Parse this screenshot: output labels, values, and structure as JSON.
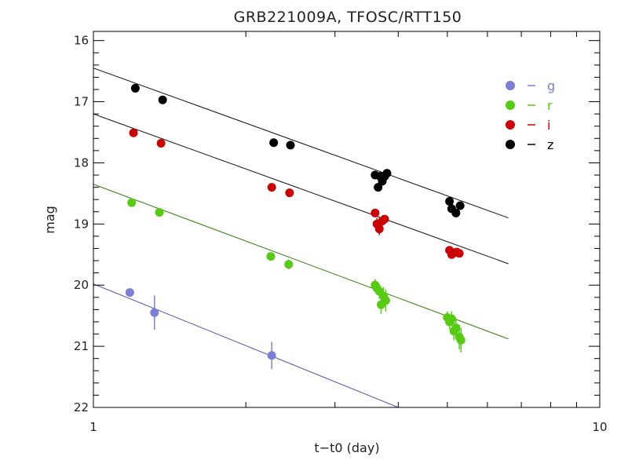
{
  "chart_data": {
    "type": "scatter",
    "title": "GRB221009A, TFOSC/RTT150",
    "xlabel": "t−t0 (day)",
    "ylabel": "mag",
    "x_scale": "log",
    "xlim": [
      1,
      10
    ],
    "ylim": [
      22,
      15.85
    ],
    "y_inverted": true,
    "x_tick_labels": [
      "1",
      "10"
    ],
    "y_tick_labels": [
      "16",
      "17",
      "18",
      "19",
      "20",
      "21",
      "22"
    ],
    "legend_position": "top-right",
    "series": [
      {
        "name": "g",
        "color": "#7b7fd6",
        "fit_color": "#4f53b0",
        "fit_line": {
          "x0": 1,
          "y0": 19.98,
          "x1": 4.0,
          "y1": 22.0
        },
        "points": [
          {
            "x": 1.18,
            "y": 20.12,
            "err": 0.05
          },
          {
            "x": 1.32,
            "y": 20.45,
            "err": 0.28
          },
          {
            "x": 2.25,
            "y": 21.15,
            "err": 0.22
          }
        ]
      },
      {
        "name": "r",
        "color": "#55cc11",
        "fit_color": "#2e7d05",
        "fit_line": {
          "x0": 1,
          "y0": 18.35,
          "x1": 6.6,
          "y1": 20.88
        },
        "points": [
          {
            "x": 1.19,
            "y": 18.65,
            "err": 0.05
          },
          {
            "x": 1.35,
            "y": 18.81,
            "err": 0.05
          },
          {
            "x": 2.24,
            "y": 19.53,
            "err": 0.05
          },
          {
            "x": 2.43,
            "y": 19.66,
            "err": 0.08
          },
          {
            "x": 3.6,
            "y": 20.0,
            "err": 0.1
          },
          {
            "x": 3.63,
            "y": 20.05,
            "err": 0.1
          },
          {
            "x": 3.67,
            "y": 20.1,
            "err": 0.12
          },
          {
            "x": 3.7,
            "y": 20.32,
            "err": 0.15
          },
          {
            "x": 3.74,
            "y": 20.18,
            "err": 0.15
          },
          {
            "x": 3.78,
            "y": 20.25,
            "err": 0.18
          },
          {
            "x": 5.0,
            "y": 20.53,
            "err": 0.1
          },
          {
            "x": 5.05,
            "y": 20.6,
            "err": 0.12
          },
          {
            "x": 5.1,
            "y": 20.55,
            "err": 0.12
          },
          {
            "x": 5.15,
            "y": 20.75,
            "err": 0.15
          },
          {
            "x": 5.2,
            "y": 20.7,
            "err": 0.15
          },
          {
            "x": 5.28,
            "y": 20.85,
            "err": 0.2
          },
          {
            "x": 5.32,
            "y": 20.9,
            "err": 0.2
          }
        ]
      },
      {
        "name": "i",
        "color": "#cc0000",
        "fit_color": "#111111",
        "fit_line": {
          "x0": 1,
          "y0": 17.2,
          "x1": 6.6,
          "y1": 19.65
        },
        "points": [
          {
            "x": 1.2,
            "y": 17.51,
            "err": 0.04
          },
          {
            "x": 1.36,
            "y": 17.68,
            "err": 0.04
          },
          {
            "x": 2.25,
            "y": 18.4,
            "err": 0.04
          },
          {
            "x": 2.44,
            "y": 18.49,
            "err": 0.05
          },
          {
            "x": 3.6,
            "y": 18.82,
            "err": 0.06
          },
          {
            "x": 3.63,
            "y": 19.0,
            "err": 0.1
          },
          {
            "x": 3.67,
            "y": 19.08,
            "err": 0.1
          },
          {
            "x": 3.72,
            "y": 18.95,
            "err": 0.08
          },
          {
            "x": 3.76,
            "y": 18.92,
            "err": 0.06
          },
          {
            "x": 5.05,
            "y": 19.43,
            "err": 0.06
          },
          {
            "x": 5.1,
            "y": 19.5,
            "err": 0.06
          },
          {
            "x": 5.15,
            "y": 19.47,
            "err": 0.05
          },
          {
            "x": 5.22,
            "y": 19.46,
            "err": 0.05
          },
          {
            "x": 5.28,
            "y": 19.48,
            "err": 0.05
          }
        ]
      },
      {
        "name": "z",
        "color": "#000000",
        "fit_color": "#111111",
        "fit_line": {
          "x0": 1,
          "y0": 16.45,
          "x1": 6.6,
          "y1": 18.9
        },
        "points": [
          {
            "x": 1.21,
            "y": 16.78,
            "err": 0.03
          },
          {
            "x": 1.37,
            "y": 16.97,
            "err": 0.03
          },
          {
            "x": 2.27,
            "y": 17.67,
            "err": 0.03
          },
          {
            "x": 2.45,
            "y": 17.71,
            "err": 0.03
          },
          {
            "x": 3.6,
            "y": 18.2,
            "err": 0.05
          },
          {
            "x": 3.65,
            "y": 18.4,
            "err": 0.06
          },
          {
            "x": 3.68,
            "y": 18.22,
            "err": 0.05
          },
          {
            "x": 3.72,
            "y": 18.3,
            "err": 0.06
          },
          {
            "x": 3.76,
            "y": 18.22,
            "err": 0.05
          },
          {
            "x": 3.8,
            "y": 18.17,
            "err": 0.05
          },
          {
            "x": 5.05,
            "y": 18.63,
            "err": 0.05
          },
          {
            "x": 5.1,
            "y": 18.75,
            "err": 0.05
          },
          {
            "x": 5.2,
            "y": 18.82,
            "err": 0.05
          },
          {
            "x": 5.3,
            "y": 18.7,
            "err": 0.05
          }
        ]
      }
    ]
  }
}
